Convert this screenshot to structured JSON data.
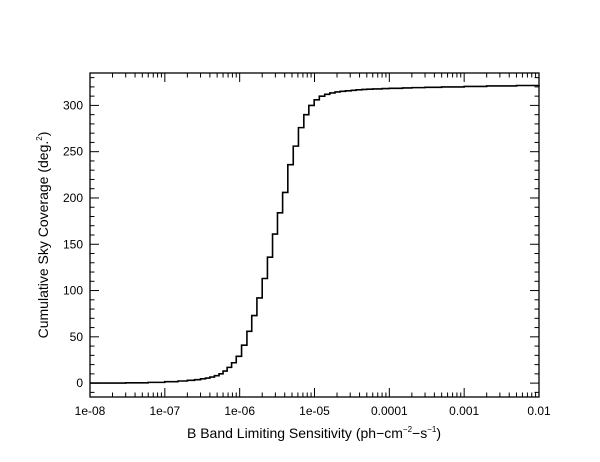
{
  "chart_data": {
    "type": "line",
    "line_style": "step",
    "x_scale": "log",
    "xlim": [
      1e-08,
      0.01
    ],
    "ylim": [
      -15,
      335
    ],
    "x_ticks": [
      {
        "value": 1e-08,
        "label": "1e-08"
      },
      {
        "value": 1e-07,
        "label": "1e-07"
      },
      {
        "value": 1e-06,
        "label": "1e-06"
      },
      {
        "value": 1e-05,
        "label": "1e-05"
      },
      {
        "value": 0.0001,
        "label": "0.0001"
      },
      {
        "value": 0.001,
        "label": "0.001"
      },
      {
        "value": 0.01,
        "label": "0.01"
      }
    ],
    "y_ticks": [
      {
        "value": 0,
        "label": "0"
      },
      {
        "value": 50,
        "label": "50"
      },
      {
        "value": 100,
        "label": "100"
      },
      {
        "value": 150,
        "label": "150"
      },
      {
        "value": 200,
        "label": "200"
      },
      {
        "value": 250,
        "label": "250"
      },
      {
        "value": 300,
        "label": "300"
      }
    ],
    "xlabel": {
      "prefix": "B Band Limiting Sensitivity (ph",
      "dash1": "−",
      "cm": "cm",
      "cm_exp": "−2",
      "dash2": "−",
      "s": "s",
      "s_exp": "−1",
      "suffix": ")"
    },
    "ylabel": {
      "main": "Cumulative Sky Coverage (deg.",
      "exp": "2",
      "suffix": ")"
    },
    "grid": false,
    "series": [
      {
        "x": [
          1e-08,
          3e-08,
          6e-08,
          1e-07,
          1.5e-07,
          2e-07,
          2.5e-07,
          3e-07,
          3.5e-07,
          4e-07,
          4.6e-07,
          5.3e-07,
          6e-07,
          6.8e-07,
          7.8e-07,
          9e-07,
          1.06e-06,
          1.25e-06,
          1.45e-06,
          1.7e-06,
          2e-06,
          2.35e-06,
          2.75e-06,
          3.2e-06,
          3.75e-06,
          4.4e-06,
          5.2e-06,
          6.1e-06,
          7.2e-06,
          8.4e-06,
          9.9e-06,
          1.16e-05,
          1.37e-05,
          1.6e-05,
          1.88e-05,
          2.2e-05,
          2.6e-05,
          3.1e-05,
          3.6e-05,
          4.3e-05,
          5e-05,
          6e-05,
          8e-05,
          0.0001,
          0.00015,
          0.0002,
          0.0003,
          0.0005,
          0.001,
          0.002,
          0.005,
          0.01
        ],
        "y": [
          0,
          0.3,
          0.8,
          1.5,
          2.3,
          3,
          3.7,
          4.6,
          5.5,
          6.5,
          8,
          10,
          13,
          17,
          22,
          29,
          41,
          56,
          73,
          92,
          113,
          136,
          161,
          184,
          206,
          236,
          256,
          276,
          290,
          300,
          306,
          310,
          312,
          313.5,
          314.5,
          315.2,
          315.8,
          316.3,
          316.8,
          317.2,
          317.5,
          317.8,
          318.2,
          318.5,
          318.9,
          319.2,
          319.5,
          320,
          320.5,
          321,
          321.5,
          322
        ]
      }
    ]
  }
}
